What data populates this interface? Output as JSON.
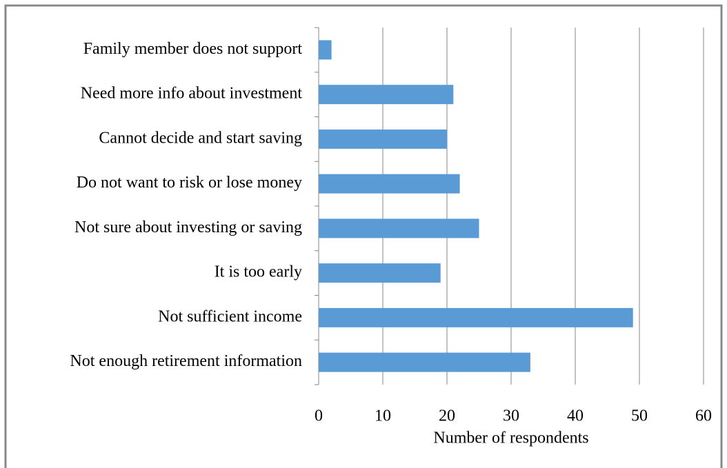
{
  "chart_data": {
    "type": "bar",
    "orientation": "horizontal",
    "xlabel": "Number of respondents",
    "categories": [
      "Family member does not support",
      "Need more info about investment",
      "Cannot decide and start saving",
      "Do not want to risk or lose money",
      "Not sure about investing or saving",
      "It is too early",
      "Not sufficient income",
      "Not enough retirement information"
    ],
    "values": [
      2,
      21,
      20,
      22,
      25,
      19,
      49,
      33
    ],
    "color": "#5b9bd5",
    "xlim": [
      0,
      60
    ],
    "xticks": [
      0,
      10,
      20,
      30,
      40,
      50,
      60
    ],
    "grid": true
  }
}
